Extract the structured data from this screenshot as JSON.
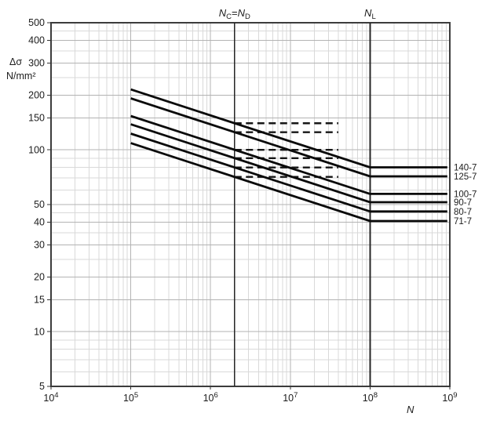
{
  "chart_data": {
    "type": "line",
    "title": "",
    "x_axis": {
      "label": "N",
      "scale": "log",
      "min": 10000,
      "max": 1000000000,
      "tick_exponents": [
        4,
        5,
        6,
        7,
        8,
        9
      ],
      "tick_base": "10"
    },
    "y_axis": {
      "label": "Δσ",
      "unit": "N/mm²",
      "scale": "log",
      "min": 5,
      "max": 500,
      "ticks": [
        500,
        400,
        300,
        200,
        150,
        100,
        50,
        40,
        30,
        20,
        15,
        10,
        5
      ]
    },
    "grid": {
      "x_major": [
        100000,
        1000000,
        10000000,
        100000000
      ],
      "y_major": [
        400,
        300,
        200,
        150,
        100,
        50,
        40,
        30,
        20,
        15,
        10
      ],
      "y_minor": [
        450,
        350,
        250,
        90,
        80,
        70,
        60,
        45,
        35,
        25,
        9,
        8,
        7,
        6
      ]
    },
    "reference_lines": [
      {
        "name": "NC=ND",
        "x": 2000000,
        "label_parts": [
          {
            "text": "N",
            "italic": true
          },
          {
            "text": "C",
            "sub": true
          },
          {
            "text": "="
          },
          {
            "text": "N",
            "italic": true
          },
          {
            "text": "D",
            "sub": true
          }
        ]
      },
      {
        "name": "NL",
        "x": 100000000,
        "label_parts": [
          {
            "text": "N",
            "italic": true
          },
          {
            "text": "L",
            "sub": true
          }
        ]
      }
    ],
    "series": [
      {
        "label": "140-7",
        "detail_category": 140,
        "slope_m": 7,
        "points": [
          {
            "n": 100000,
            "ds": 214.8
          },
          {
            "n": 100000000,
            "ds": 80.1
          },
          {
            "n": 930000000,
            "ds": 80.1
          }
        ]
      },
      {
        "label": "125-7",
        "detail_category": 125,
        "slope_m": 7,
        "points": [
          {
            "n": 100000,
            "ds": 191.8
          },
          {
            "n": 100000000,
            "ds": 71.5
          },
          {
            "n": 930000000,
            "ds": 71.5
          }
        ]
      },
      {
        "label": "100-7",
        "detail_category": 100,
        "slope_m": 7,
        "points": [
          {
            "n": 100000,
            "ds": 153.4
          },
          {
            "n": 100000000,
            "ds": 57.2
          },
          {
            "n": 930000000,
            "ds": 57.2
          }
        ]
      },
      {
        "label": "90-7",
        "detail_category": 90,
        "slope_m": 7,
        "points": [
          {
            "n": 100000,
            "ds": 138.1
          },
          {
            "n": 100000000,
            "ds": 51.5
          },
          {
            "n": 930000000,
            "ds": 51.5
          }
        ]
      },
      {
        "label": "80-7",
        "detail_category": 80,
        "slope_m": 7,
        "points": [
          {
            "n": 100000,
            "ds": 122.7
          },
          {
            "n": 100000000,
            "ds": 45.8
          },
          {
            "n": 930000000,
            "ds": 45.8
          }
        ]
      },
      {
        "label": "71-7",
        "detail_category": 71,
        "slope_m": 7,
        "points": [
          {
            "n": 100000,
            "ds": 108.9
          },
          {
            "n": 100000000,
            "ds": 40.6
          },
          {
            "n": 930000000,
            "ds": 40.6
          }
        ]
      }
    ],
    "dashed_limit_lines": [
      {
        "value": 140,
        "n_from": 2000000,
        "n_to": 40000000
      },
      {
        "value": 125,
        "n_from": 2000000,
        "n_to": 40000000
      },
      {
        "value": 100,
        "n_from": 2000000,
        "n_to": 40000000
      },
      {
        "value": 90,
        "n_from": 2000000,
        "n_to": 40000000
      },
      {
        "value": 80,
        "n_from": 2000000,
        "n_to": 40000000
      },
      {
        "value": 71,
        "n_from": 2000000,
        "n_to": 40000000
      }
    ],
    "colors": {
      "curve": "#0a0a0a",
      "dashed": "#161616",
      "reference_line": "#262626",
      "frame": "#3c3c3c",
      "grid_major": "#b3b3b3",
      "grid_minor": "#d9d9d9",
      "text": "#1c1c1c"
    },
    "legend_position": "right-of-plot"
  }
}
